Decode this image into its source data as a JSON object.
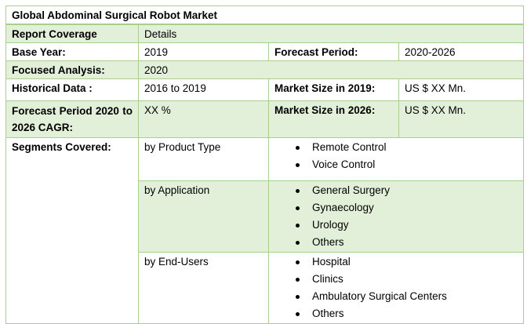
{
  "title": "Global Abdominal Surgical Robot Market",
  "rows": {
    "coverage": {
      "label": "Report Coverage",
      "value": "Details"
    },
    "base_year": {
      "label": "Base Year:",
      "value": "2019",
      "label2": "Forecast Period:",
      "value2": "2020-2026"
    },
    "focused": {
      "label": "Focused Analysis:",
      "value": "2020"
    },
    "historical": {
      "label": "Historical Data :",
      "value": "2016 to 2019",
      "label2": "Market Size in 2019:",
      "value2": "US $ XX Mn."
    },
    "cagr": {
      "label": "Forecast Period 2020 to 2026 CAGR:",
      "value": "XX %",
      "label2": "Market Size in 2026:",
      "value2": "US $ XX Mn."
    }
  },
  "segments": {
    "label": "Segments Covered:",
    "groups": [
      {
        "name": "by Product Type",
        "items": [
          "Remote Control",
          "Voice Control"
        ]
      },
      {
        "name": "by Application",
        "items": [
          "General Surgery",
          "Gynaecology",
          "Urology",
          "Others"
        ]
      },
      {
        "name": "by End-Users",
        "items": [
          "Hospital",
          "Clinics",
          "Ambulatory Surgical Centers",
          "Others"
        ]
      }
    ]
  },
  "colors": {
    "border": "#a8d08d",
    "shade": "#e2efd9"
  }
}
